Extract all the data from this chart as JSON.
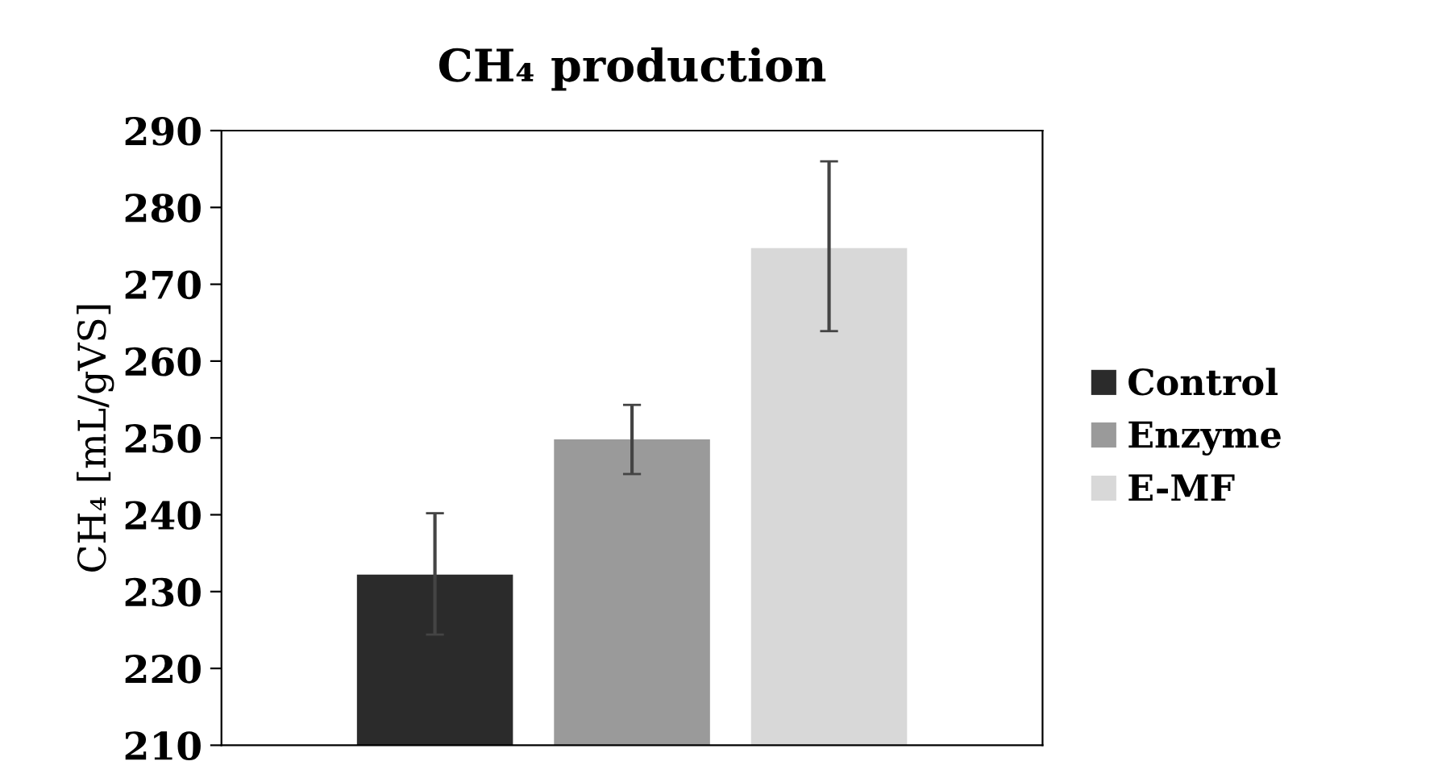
{
  "chart_data": {
    "type": "bar",
    "title": "CH₄ production",
    "ylabel": "CH₄ [mL/gVS]",
    "categories": [
      null
    ],
    "series": [
      {
        "name": "Control",
        "color": "#2b2b2b",
        "values": [
          232.2
        ],
        "errors": [
          [
            224.4,
            240.2
          ]
        ]
      },
      {
        "name": "Enzyme",
        "color": "#9a9a9a",
        "values": [
          249.8
        ],
        "errors": [
          [
            245.3,
            254.3
          ]
        ]
      },
      {
        "name": "E-MF",
        "color": "#d8d8d8",
        "values": [
          274.7
        ],
        "errors": [
          [
            263.9,
            286.0
          ]
        ]
      }
    ],
    "ylim": [
      210,
      290
    ],
    "yticks": [
      210,
      220,
      230,
      240,
      250,
      260,
      270,
      280,
      290
    ],
    "grid": false,
    "legend": "right"
  }
}
